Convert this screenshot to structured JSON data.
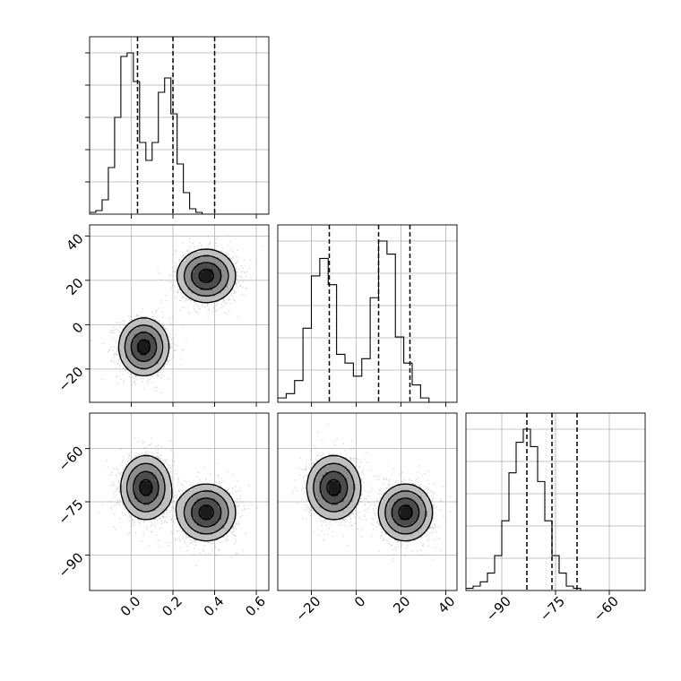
{
  "chart_data": {
    "type": "corner",
    "title": "",
    "grid": true,
    "params": [
      {
        "ticks": [
          0.0,
          0.2,
          0.4,
          0.6
        ],
        "tick_labels": [
          "0.0",
          "0.2",
          "0.4",
          "0.6"
        ],
        "range": [
          -0.2,
          0.66
        ],
        "quantiles": [
          0.03,
          0.2,
          0.4
        ],
        "hist_edges_start": -0.2,
        "hist_bin_width": 0.03,
        "hist_counts": [
          0.5,
          1.0,
          4.0,
          13.0,
          27.0,
          44.0,
          45.0,
          37.0,
          20.0,
          15.0,
          20.0,
          34.0,
          38.0,
          28.0,
          14.0,
          6.0,
          1.5,
          0.5,
          0,
          0,
          0,
          0,
          0,
          0,
          0,
          0,
          0,
          0,
          0
        ]
      },
      {
        "ticks": [
          -20,
          0,
          20,
          40
        ],
        "tick_labels": [
          "−20",
          "0",
          "20",
          "40"
        ],
        "range": [
          -35,
          45
        ],
        "quantiles": [
          -12,
          10,
          24
        ],
        "hist_edges_start": -35,
        "hist_bin_width": 3.75,
        "hist_counts": [
          1,
          2,
          5,
          17,
          29,
          33,
          27,
          11,
          9,
          6,
          10,
          24,
          37,
          34,
          15,
          9,
          4,
          1,
          0,
          0,
          0
        ]
      },
      {
        "ticks": [
          -90,
          -75,
          -60
        ],
        "tick_labels": [
          "−90",
          "−75",
          "−60"
        ],
        "range": [
          -100,
          -50
        ],
        "quantiles": [
          -83,
          -76,
          -69
        ],
        "hist_edges_start": -100,
        "hist_bin_width": 2,
        "hist_counts": [
          0.5,
          1,
          2,
          4,
          8,
          16,
          27,
          34,
          37,
          33,
          25,
          16,
          8,
          4,
          1,
          0.5,
          0,
          0,
          0,
          0,
          0,
          0,
          0,
          0,
          0
        ]
      }
    ],
    "pairs": [
      {
        "x_param": 0,
        "y_param": 1,
        "yticks": [
          -20,
          0,
          20,
          40
        ],
        "ytick_labels": [
          "−20",
          "0",
          "20",
          "40"
        ],
        "modes": [
          {
            "x": 0.06,
            "y": -10,
            "sx": 0.06,
            "sy": 6.5,
            "weight": 1.0
          },
          {
            "x": 0.36,
            "y": 22,
            "sx": 0.07,
            "sy": 6.0,
            "weight": 1.0
          }
        ]
      },
      {
        "x_param": 0,
        "y_param": 2,
        "yticks": [
          -90,
          -75,
          -60
        ],
        "ytick_labels": [
          "−90",
          "−75",
          "−60"
        ],
        "modes": [
          {
            "x": 0.07,
            "y": -71,
            "sx": 0.06,
            "sy": 4.5,
            "weight": 1.0
          },
          {
            "x": 0.36,
            "y": -78,
            "sx": 0.07,
            "sy": 4.0,
            "weight": 1.0
          }
        ]
      },
      {
        "x_param": 1,
        "y_param": 2,
        "modes": [
          {
            "x": -10,
            "y": -71,
            "sx": 6.0,
            "sy": 4.5,
            "weight": 1.0
          },
          {
            "x": 22,
            "y": -78,
            "sx": 6.0,
            "sy": 4.0,
            "weight": 1.0
          }
        ]
      }
    ]
  }
}
